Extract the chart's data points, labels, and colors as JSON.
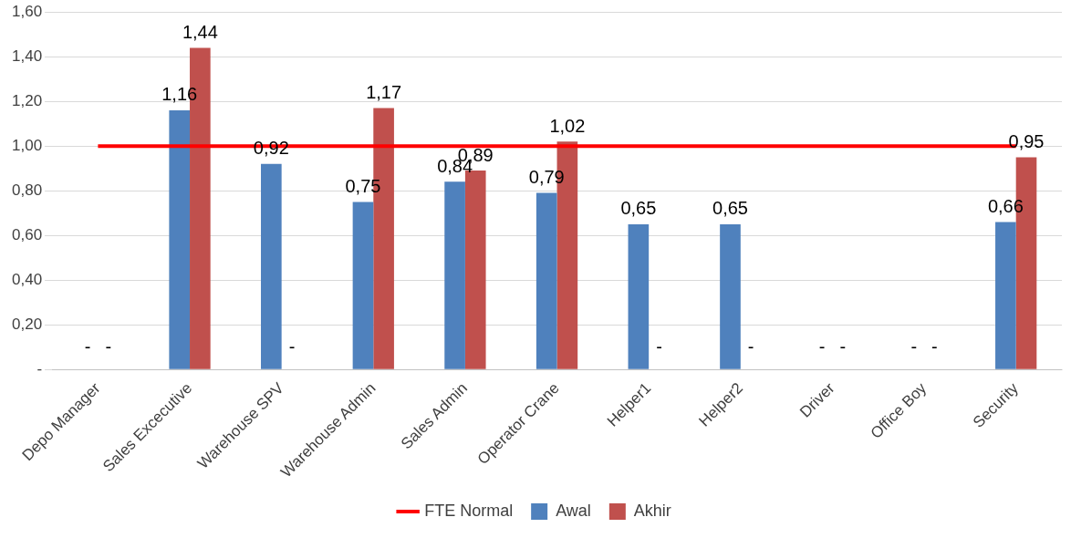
{
  "chart_data": {
    "type": "bar",
    "categories": [
      "Depo Manager",
      "Sales Excecutive",
      "Warehouse SPV",
      "Warehouse Admin",
      "Sales Admin",
      "Operator Crane",
      "Helper1",
      "Helper2",
      "Driver",
      "Office Boy",
      "Security"
    ],
    "series": [
      {
        "name": "Awal",
        "color": "#4f81bd",
        "values": [
          0,
          1.16,
          0.92,
          0.75,
          0.84,
          0.79,
          0.65,
          0.65,
          0,
          0,
          0.66
        ],
        "value_labels": [
          "-",
          "1,16",
          "0,92",
          "0,75",
          "0,84",
          "0,79",
          "0,65",
          "0,65",
          "-",
          "-",
          "0,66"
        ]
      },
      {
        "name": "Akhir",
        "color": "#c0504d",
        "values": [
          0,
          1.44,
          0,
          1.17,
          0.89,
          1.02,
          0,
          0,
          0,
          0,
          0.95
        ],
        "value_labels": [
          "-",
          "1,44",
          "-",
          "1,17",
          "0,89",
          "1,02",
          "-",
          "-",
          "-",
          "-",
          "0,95"
        ]
      },
      {
        "name": "FTE Normal",
        "type": "line",
        "color": "#ff0000",
        "values": [
          1,
          1,
          1,
          1,
          1,
          1,
          1,
          1,
          1,
          1,
          1
        ]
      }
    ],
    "ylim": [
      0,
      1.6
    ],
    "yticks": [
      {
        "value": 0,
        "label": "-"
      },
      {
        "value": 0.2,
        "label": "0,20"
      },
      {
        "value": 0.4,
        "label": "0,40"
      },
      {
        "value": 0.6,
        "label": "0,60"
      },
      {
        "value": 0.8,
        "label": "0,80"
      },
      {
        "value": 1,
        "label": "1,00"
      },
      {
        "value": 1.2,
        "label": "1,20"
      },
      {
        "value": 1.4,
        "label": "1,40"
      },
      {
        "value": 1.6,
        "label": "1,60"
      }
    ],
    "grid": "y",
    "legend": "bottom",
    "marker": "none"
  }
}
